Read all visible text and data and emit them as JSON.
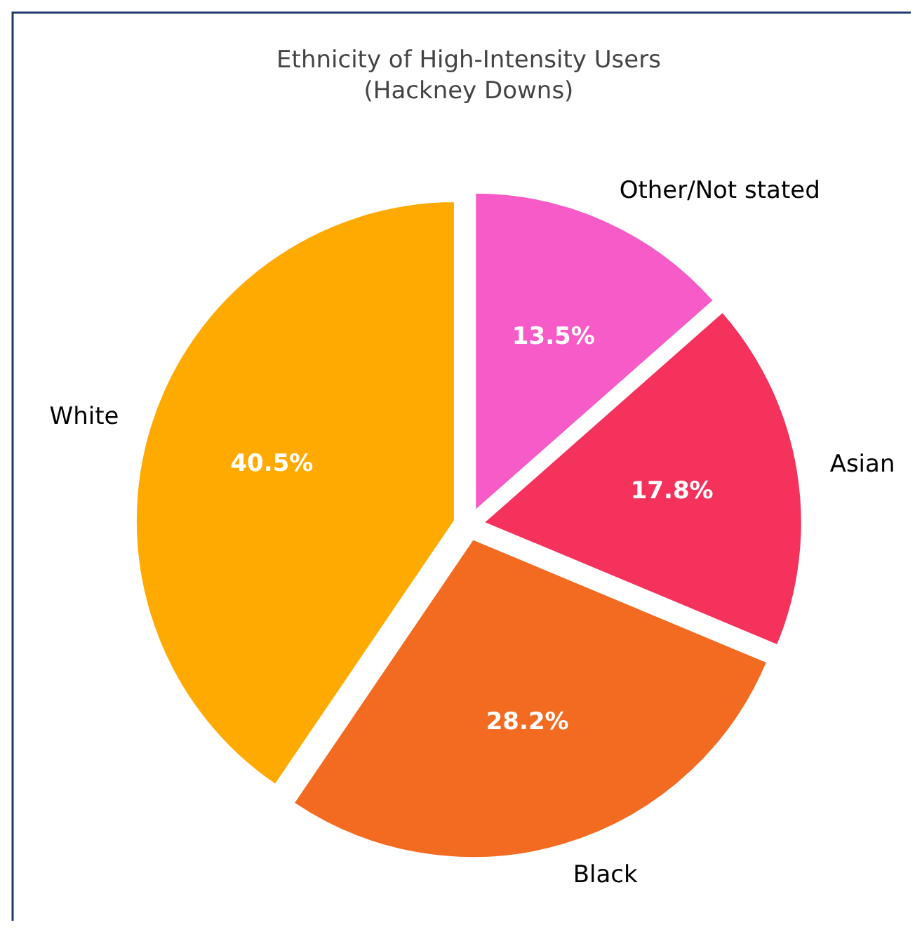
{
  "chart_data": {
    "type": "pie",
    "title": "Ethnicity of High-Intensity Users\n(Hackney Downs)",
    "categories": [
      "White",
      "Black",
      "Asian",
      "Other/Not stated"
    ],
    "values": [
      40.5,
      28.2,
      17.8,
      13.5
    ],
    "colors": [
      "#ffaa00",
      "#f26b21",
      "#f5325b",
      "#f75bc7"
    ],
    "value_labels": [
      "40.5%",
      "28.2%",
      "17.8%",
      "13.5%"
    ]
  }
}
